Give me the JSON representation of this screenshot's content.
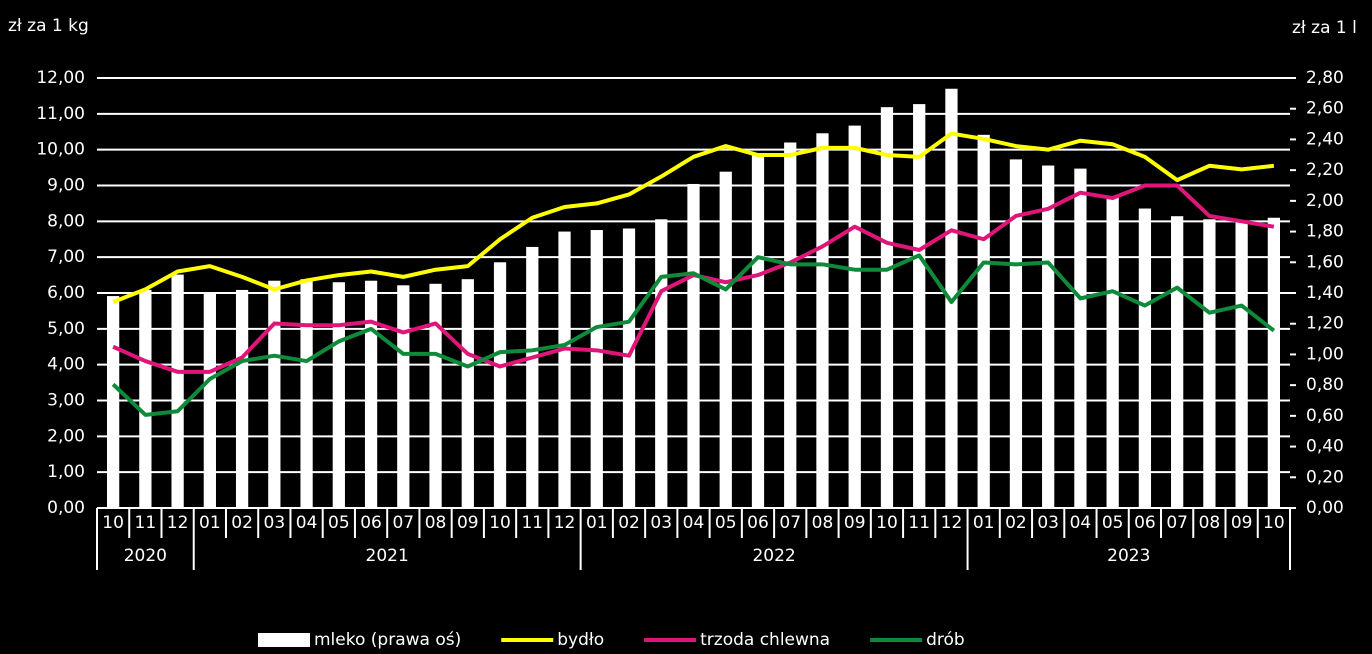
{
  "chart_data": {
    "type": "combo",
    "y_label": "zł za 1 kg",
    "y2_label": "zł za 1 l",
    "categories": [
      "10",
      "11",
      "12",
      "01",
      "02",
      "03",
      "04",
      "05",
      "06",
      "07",
      "08",
      "09",
      "10",
      "11",
      "12",
      "01",
      "02",
      "03",
      "04",
      "05",
      "06",
      "07",
      "08",
      "09",
      "10",
      "11",
      "12",
      "01",
      "02",
      "03",
      "04",
      "05",
      "06",
      "07",
      "08",
      "09",
      "10"
    ],
    "x_groups": [
      "2020",
      "2021",
      "2022",
      "2023"
    ],
    "ylim": [
      0,
      12
    ],
    "yticks": [
      {
        "value": 0,
        "label": "0,00"
      },
      {
        "value": 1,
        "label": "1,00"
      },
      {
        "value": 2,
        "label": "2,00"
      },
      {
        "value": 3,
        "label": "3,00"
      },
      {
        "value": 4,
        "label": "4,00"
      },
      {
        "value": 5,
        "label": "5,00"
      },
      {
        "value": 6,
        "label": "6,00"
      },
      {
        "value": 7,
        "label": "7,00"
      },
      {
        "value": 8,
        "label": "8,00"
      },
      {
        "value": 9,
        "label": "9,00"
      },
      {
        "value": 10,
        "label": "10,00"
      },
      {
        "value": 11,
        "label": "11,00"
      },
      {
        "value": 12,
        "label": "12,00"
      }
    ],
    "y2lim": [
      0,
      2.8
    ],
    "y2ticks": [
      {
        "value": 0,
        "label": "0,00"
      },
      {
        "value": 0.2,
        "label": "0,20"
      },
      {
        "value": 0.4,
        "label": "0,40"
      },
      {
        "value": 0.6,
        "label": "0,60"
      },
      {
        "value": 0.8,
        "label": "0,80"
      },
      {
        "value": 1,
        "label": "1,00"
      },
      {
        "value": 1.2,
        "label": "1,20"
      },
      {
        "value": 1.4,
        "label": "1,40"
      },
      {
        "value": 1.6,
        "label": "1,60"
      },
      {
        "value": 1.8,
        "label": "1,80"
      },
      {
        "value": 2,
        "label": "2,00"
      },
      {
        "value": 2.2,
        "label": "2,20"
      },
      {
        "value": 2.4,
        "label": "2,40"
      },
      {
        "value": 2.6,
        "label": "2,60"
      },
      {
        "value": 2.8,
        "label": "2,80"
      }
    ],
    "grid": true,
    "legend": "bottom",
    "series": [
      {
        "name": "mleko (prawa oś)",
        "type": "bar",
        "axis": "y2",
        "color": "#ffffff",
        "values": [
          1.38,
          1.42,
          1.52,
          1.4,
          1.42,
          1.48,
          1.49,
          1.47,
          1.48,
          1.45,
          1.46,
          1.49,
          1.6,
          1.7,
          1.8,
          1.81,
          1.82,
          1.88,
          2.11,
          2.19,
          2.3,
          2.38,
          2.44,
          2.49,
          2.61,
          2.63,
          2.73,
          2.43,
          2.27,
          2.23,
          2.21,
          2.03,
          1.95,
          1.9,
          1.88,
          1.87,
          1.89
        ]
      },
      {
        "name": "bydło",
        "type": "line",
        "color": "#ffff00",
        "values": [
          5.75,
          6.1,
          6.6,
          6.75,
          6.45,
          6.1,
          6.35,
          6.5,
          6.6,
          6.45,
          6.65,
          6.75,
          7.5,
          8.1,
          8.4,
          8.5,
          8.75,
          9.25,
          9.8,
          10.1,
          9.85,
          9.85,
          10.05,
          10.05,
          9.85,
          9.8,
          10.45,
          10.3,
          10.1,
          10.0,
          10.25,
          10.15,
          9.8,
          9.15,
          9.55,
          9.45,
          9.55
        ]
      },
      {
        "name": "trzoda chlewna",
        "type": "line",
        "color": "#e0157a",
        "values": [
          4.5,
          4.1,
          3.8,
          3.8,
          4.2,
          5.15,
          5.1,
          5.1,
          5.2,
          4.9,
          5.15,
          4.3,
          3.95,
          4.2,
          4.45,
          4.4,
          4.25,
          6.05,
          6.5,
          6.3,
          6.5,
          6.85,
          7.3,
          7.85,
          7.4,
          7.2,
          7.75,
          7.5,
          8.15,
          8.35,
          8.8,
          8.65,
          9.0,
          9.0,
          8.15,
          8.0,
          7.85
        ]
      },
      {
        "name": "drób",
        "type": "line",
        "color": "#0e8a3a",
        "values": [
          3.45,
          2.6,
          2.7,
          3.6,
          4.1,
          4.25,
          4.1,
          4.65,
          5.0,
          4.3,
          4.3,
          3.95,
          4.35,
          4.4,
          4.55,
          5.05,
          5.2,
          6.45,
          6.55,
          6.1,
          7.0,
          6.8,
          6.8,
          6.65,
          6.65,
          7.05,
          5.75,
          6.85,
          6.8,
          6.85,
          5.85,
          6.05,
          5.65,
          6.15,
          5.45,
          5.65,
          4.95
        ]
      }
    ]
  }
}
